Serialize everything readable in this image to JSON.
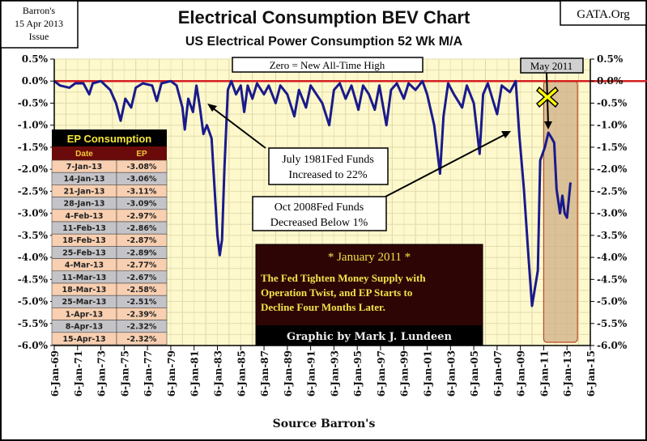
{
  "header": {
    "source_box": [
      "Barron's",
      "15 Apr 2013",
      "Issue"
    ],
    "site_label": "GATA.Org"
  },
  "chart_data": {
    "type": "line",
    "title": "Electrical Consumption BEV Chart",
    "subtitle": "US Electrical Power Consumption 52 Wk M/A",
    "xlabel": "Source Barron's",
    "ylabel": "",
    "xlim": [
      1969,
      2015
    ],
    "ylim": [
      -6.0,
      0.5
    ],
    "grid": true,
    "x_tick_labels": [
      "6-Jan-69",
      "6-Jan-71",
      "6-Jan-73",
      "6-Jan-75",
      "6-Jan-77",
      "6-Jan-79",
      "6-Jan-81",
      "6-Jan-83",
      "6-Jan-85",
      "6-Jan-87",
      "6-Jan-89",
      "6-Jan-91",
      "6-Jan-93",
      "6-Jan-95",
      "6-Jan-97",
      "6-Jan-99",
      "6-Jan-01",
      "6-Jan-03",
      "6-Jan-05",
      "6-Jan-07",
      "6-Jan-09",
      "6-Jan-11",
      "6-Jan-13",
      "6-Jan-15"
    ],
    "y_tick_labels": [
      "0.5%",
      "0.0%",
      "-0.5%",
      "-1.0%",
      "-1.5%",
      "-2.0%",
      "-2.5%",
      "-3.0%",
      "-3.5%",
      "-4.0%",
      "-4.5%",
      "-5.0%",
      "-5.5%",
      "-6.0%"
    ],
    "series_color": "#1a1a8c",
    "zero_line_color": "#d42020",
    "shaded_period": [
      2011.0,
      2013.9
    ],
    "series": [
      {
        "points": [
          [
            1969.0,
            0
          ],
          [
            1969.5,
            -0.1
          ],
          [
            1970.3,
            -0.15
          ],
          [
            1970.8,
            -0.05
          ],
          [
            1971.5,
            -0.05
          ],
          [
            1972.0,
            -0.3
          ],
          [
            1972.3,
            -0.05
          ],
          [
            1973.0,
            0
          ],
          [
            1973.8,
            -0.2
          ],
          [
            1974.3,
            -0.5
          ],
          [
            1974.7,
            -0.9
          ],
          [
            1975.1,
            -0.4
          ],
          [
            1975.6,
            -0.6
          ],
          [
            1976.0,
            -0.15
          ],
          [
            1976.6,
            -0.05
          ],
          [
            1977.4,
            -0.1
          ],
          [
            1977.8,
            -0.45
          ],
          [
            1978.2,
            -0.05
          ],
          [
            1979.0,
            0
          ],
          [
            1979.5,
            -0.1
          ],
          [
            1980.0,
            -0.6
          ],
          [
            1980.2,
            -1.1
          ],
          [
            1980.5,
            -0.4
          ],
          [
            1980.9,
            -0.7
          ],
          [
            1981.2,
            -0.1
          ],
          [
            1981.5,
            -0.6
          ],
          [
            1981.8,
            -1.2
          ],
          [
            1982.1,
            -1.0
          ],
          [
            1982.5,
            -1.3
          ],
          [
            1982.7,
            -2.2
          ],
          [
            1983.0,
            -3.5
          ],
          [
            1983.2,
            -3.95
          ],
          [
            1983.4,
            -3.6
          ],
          [
            1983.6,
            -2.0
          ],
          [
            1983.9,
            -0.2
          ],
          [
            1984.2,
            0
          ],
          [
            1984.6,
            -0.3
          ],
          [
            1985.0,
            -0.1
          ],
          [
            1985.3,
            -0.7
          ],
          [
            1985.6,
            -0.1
          ],
          [
            1986.0,
            -0.4
          ],
          [
            1986.4,
            -0.05
          ],
          [
            1987.0,
            -0.3
          ],
          [
            1987.4,
            -0.1
          ],
          [
            1988.0,
            -0.5
          ],
          [
            1988.4,
            -0.1
          ],
          [
            1989.0,
            -0.3
          ],
          [
            1989.6,
            -0.8
          ],
          [
            1990.0,
            -0.2
          ],
          [
            1990.6,
            -0.6
          ],
          [
            1991.0,
            -0.1
          ],
          [
            1991.5,
            -0.3
          ],
          [
            1992.0,
            -0.5
          ],
          [
            1992.6,
            -1.0
          ],
          [
            1993.0,
            -0.2
          ],
          [
            1993.5,
            -0.05
          ],
          [
            1994.0,
            -0.4
          ],
          [
            1994.5,
            -0.1
          ],
          [
            1995.1,
            -0.65
          ],
          [
            1995.5,
            -0.1
          ],
          [
            1996.0,
            -0.3
          ],
          [
            1996.5,
            -0.65
          ],
          [
            1996.9,
            -0.1
          ],
          [
            1997.5,
            -1.0
          ],
          [
            1997.9,
            -0.2
          ],
          [
            1998.4,
            -0.05
          ],
          [
            1999.0,
            -0.4
          ],
          [
            1999.4,
            -0.05
          ],
          [
            2000.0,
            -0.2
          ],
          [
            2000.6,
            0
          ],
          [
            2001.0,
            -0.3
          ],
          [
            2001.6,
            -1.0
          ],
          [
            2002.1,
            -2.1
          ],
          [
            2002.4,
            -0.8
          ],
          [
            2002.8,
            -0.05
          ],
          [
            2003.3,
            -0.3
          ],
          [
            2004.0,
            -0.6
          ],
          [
            2004.4,
            -0.1
          ],
          [
            2005.0,
            -0.5
          ],
          [
            2005.5,
            -1.65
          ],
          [
            2005.8,
            -0.3
          ],
          [
            2006.2,
            -0.05
          ],
          [
            2006.6,
            -0.4
          ],
          [
            2007.0,
            -0.75
          ],
          [
            2007.4,
            -0.1
          ],
          [
            2008.1,
            -0.25
          ],
          [
            2008.6,
            0
          ],
          [
            2008.9,
            -1.2
          ],
          [
            2009.3,
            -2.45
          ],
          [
            2009.7,
            -4.0
          ],
          [
            2010.0,
            -5.1
          ],
          [
            2010.5,
            -4.3
          ],
          [
            2010.7,
            -1.8
          ],
          [
            2011.1,
            -1.5
          ],
          [
            2011.4,
            -1.17
          ],
          [
            2011.7,
            -1.3
          ],
          [
            2011.9,
            -1.4
          ],
          [
            2012.1,
            -2.45
          ],
          [
            2012.4,
            -3.0
          ],
          [
            2012.6,
            -2.6
          ],
          [
            2012.8,
            -3.0
          ],
          [
            2013.0,
            -3.1
          ],
          [
            2013.3,
            -2.3
          ]
        ]
      }
    ],
    "annotations": {
      "zero_note": "Zero = New All-Time High",
      "may_2011": "May 2011",
      "july_1981": [
        "July 1981Fed Funds",
        "Increased to 22%"
      ],
      "oct_2008": [
        "Oct 2008Fed Funds",
        "Decreased Below 1%"
      ],
      "jan_2011": {
        "title": "* January 2011 *",
        "lines": [
          "The Fed Tighten Money Supply with",
          "Operation Twist, and  EP Starts to",
          "Decline Four Months Later."
        ],
        "credit": "Graphic by Mark J. Lundeen"
      }
    },
    "table": {
      "title": "EP Consumption",
      "columns": [
        "Date",
        "EP"
      ],
      "rows": [
        [
          "7-Jan-13",
          "-3.08%"
        ],
        [
          "14-Jan-13",
          "-3.06%"
        ],
        [
          "21-Jan-13",
          "-3.11%"
        ],
        [
          "28-Jan-13",
          "-3.09%"
        ],
        [
          "4-Feb-13",
          "-2.97%"
        ],
        [
          "11-Feb-13",
          "-2.86%"
        ],
        [
          "18-Feb-13",
          "-2.87%"
        ],
        [
          "25-Feb-13",
          "-2.89%"
        ],
        [
          "4-Mar-13",
          "-2.77%"
        ],
        [
          "11-Mar-13",
          "-2.67%"
        ],
        [
          "18-Mar-13",
          "-2.58%"
        ],
        [
          "25-Mar-13",
          "-2.51%"
        ],
        [
          "1-Apr-13",
          "-2.39%"
        ],
        [
          "8-Apr-13",
          "-2.32%"
        ],
        [
          "15-Apr-13",
          "-2.32%"
        ]
      ]
    }
  }
}
